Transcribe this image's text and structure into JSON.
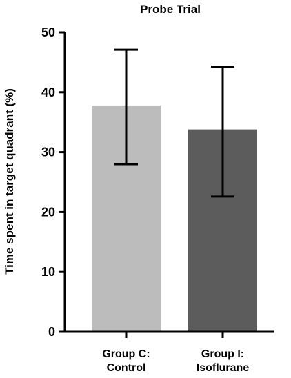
{
  "chart_data": {
    "type": "bar",
    "title": "Probe Trial",
    "xlabel": "",
    "ylabel": "Time spent in target quadrant (%)",
    "ylim": [
      0,
      50
    ],
    "yticks": [
      0,
      10,
      20,
      30,
      40,
      50
    ],
    "grid": false,
    "legend": "none",
    "categories": [
      [
        "Group C:",
        "Control"
      ],
      [
        "Group I:",
        "Isoflurane"
      ]
    ],
    "values": [
      37.8,
      33.8
    ],
    "error_bars": [
      {
        "lower": 28.0,
        "upper": 47.1
      },
      {
        "lower": 22.6,
        "upper": 44.3
      }
    ],
    "colors": [
      "#bcbcbc",
      "#5c5c5c"
    ]
  }
}
